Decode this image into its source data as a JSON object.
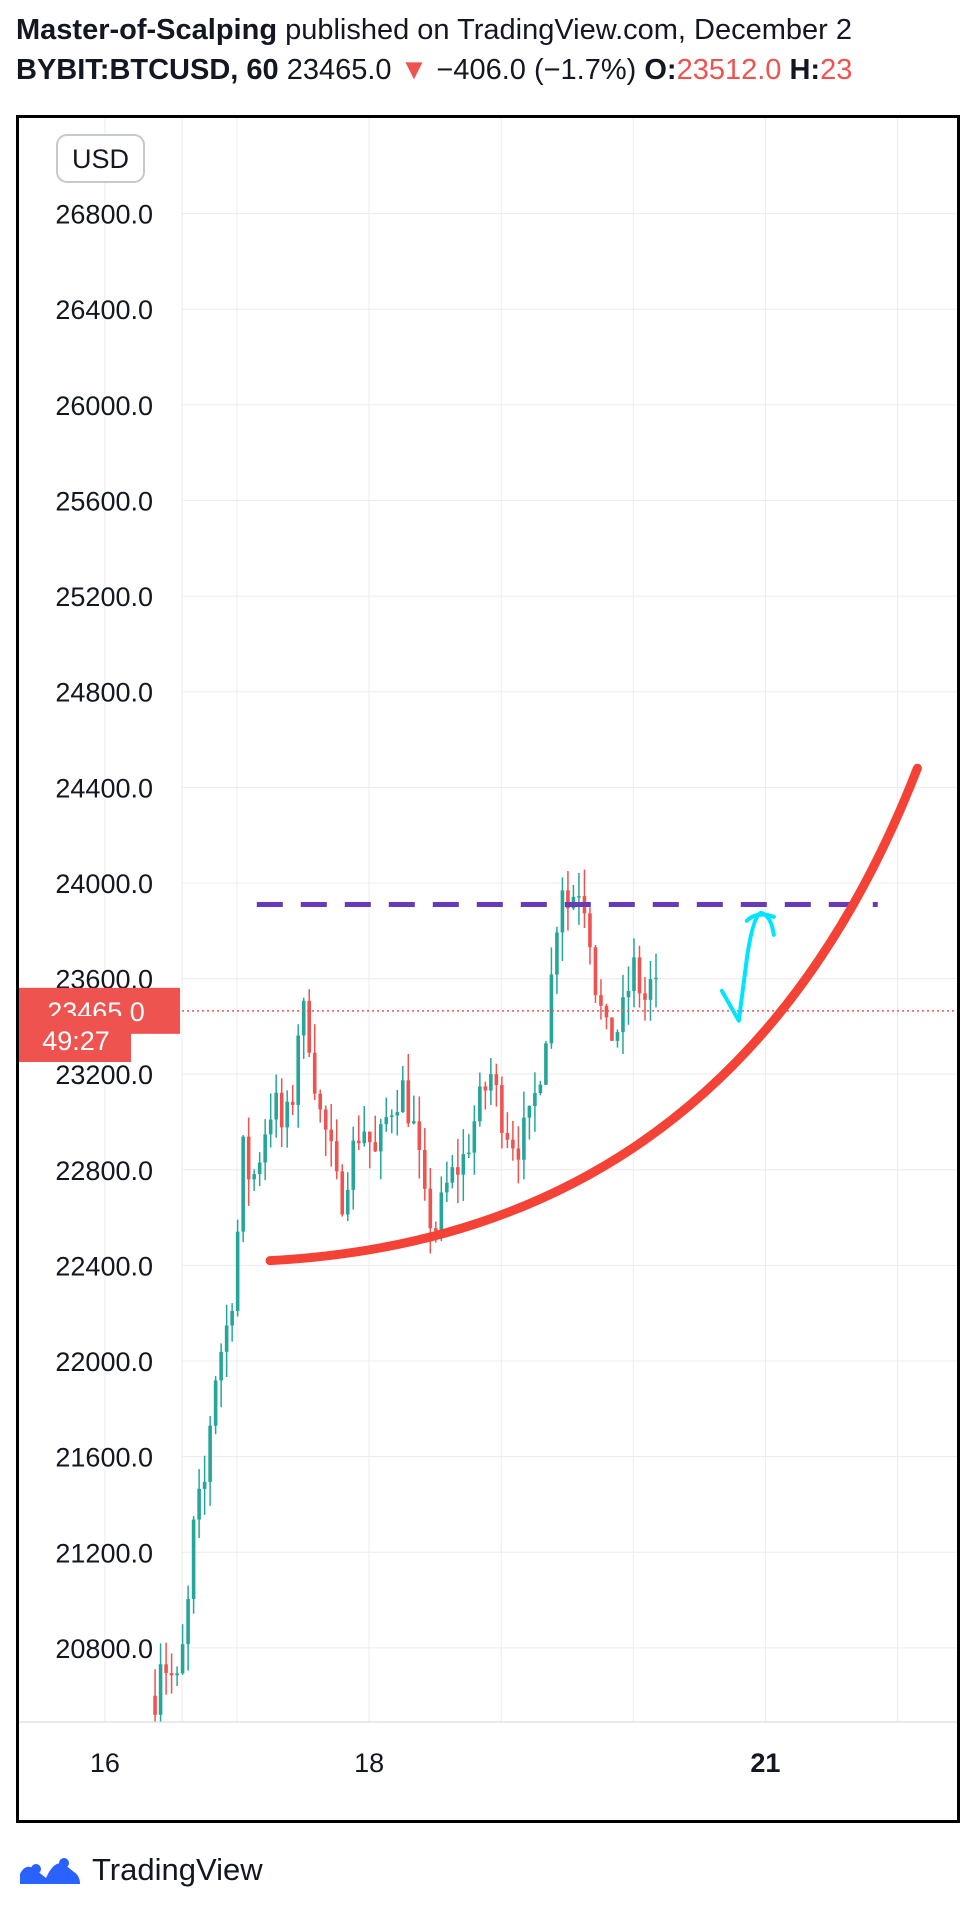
{
  "header": {
    "author": "Master-of-Scalping",
    "published_text": " published on TradingView.com, December 2",
    "symbol": "BYBIT:BTCUSD, 60",
    "last_price": "23465.0",
    "change": "−406.0 (−1.7%)",
    "open_label": "O:",
    "open_value": "23512.0",
    "high_label": "H:",
    "high_value": "23"
  },
  "currency_badge": "USD",
  "price_label": "23465.0",
  "countdown_label": "49:27",
  "footer": {
    "brand": "TradingView"
  },
  "colors": {
    "up": "#26a69a",
    "down": "#ef5350",
    "curve": "#f44336",
    "dash": "#673ab7",
    "arrow": "#00e5ff",
    "grid": "#ececf0"
  },
  "chart_data": {
    "type": "candlestick",
    "timeframe": "60",
    "yticks": [
      26800,
      26400,
      26000,
      25600,
      25200,
      24800,
      24400,
      24000,
      23600,
      23200,
      22800,
      22400,
      22000,
      21600,
      21200,
      20800
    ],
    "ytick_labels": [
      "26800.0",
      "26400.0",
      "26000.0",
      "25600.0",
      "25200.0",
      "24800.0",
      "24400.0",
      "24000.0",
      "23600.0",
      "23200.0",
      "22800.0",
      "22400.0",
      "22000.0",
      "21600.0",
      "21200.0",
      "20800.0"
    ],
    "ylim": [
      20490,
      27200
    ],
    "xlim": [
      15.35,
      22.45
    ],
    "xticks": [
      16,
      18,
      21
    ],
    "xtick_labels": [
      "16",
      "18",
      "21"
    ],
    "current_price": 23465.0,
    "keyframes": [
      {
        "t": 16.38,
        "p": 20600
      },
      {
        "t": 16.42,
        "p": 20780
      },
      {
        "t": 16.48,
        "p": 20700
      },
      {
        "t": 16.55,
        "p": 20640
      },
      {
        "t": 16.62,
        "p": 20900
      },
      {
        "t": 16.68,
        "p": 21350
      },
      {
        "t": 16.75,
        "p": 21450
      },
      {
        "t": 16.82,
        "p": 21900
      },
      {
        "t": 16.88,
        "p": 22050
      },
      {
        "t": 16.95,
        "p": 22200
      },
      {
        "t": 17.0,
        "p": 22500
      },
      {
        "t": 17.05,
        "p": 22900
      },
      {
        "t": 17.1,
        "p": 22750
      },
      {
        "t": 17.15,
        "p": 22800
      },
      {
        "t": 17.2,
        "p": 22950
      },
      {
        "t": 17.28,
        "p": 23100
      },
      {
        "t": 17.35,
        "p": 22950
      },
      {
        "t": 17.42,
        "p": 23100
      },
      {
        "t": 17.48,
        "p": 23500
      },
      {
        "t": 17.55,
        "p": 23350
      },
      {
        "t": 17.62,
        "p": 23050
      },
      {
        "t": 17.7,
        "p": 22900
      },
      {
        "t": 17.78,
        "p": 22650
      },
      {
        "t": 17.86,
        "p": 22850
      },
      {
        "t": 17.95,
        "p": 23000
      },
      {
        "t": 18.05,
        "p": 22850
      },
      {
        "t": 18.15,
        "p": 23050
      },
      {
        "t": 18.25,
        "p": 23150
      },
      {
        "t": 18.35,
        "p": 22950
      },
      {
        "t": 18.42,
        "p": 22650
      },
      {
        "t": 18.5,
        "p": 22550
      },
      {
        "t": 18.6,
        "p": 22750
      },
      {
        "t": 18.72,
        "p": 22850
      },
      {
        "t": 18.82,
        "p": 23050
      },
      {
        "t": 18.92,
        "p": 23200
      },
      {
        "t": 19.02,
        "p": 23000
      },
      {
        "t": 19.12,
        "p": 22900
      },
      {
        "t": 19.22,
        "p": 23000
      },
      {
        "t": 19.32,
        "p": 23300
      },
      {
        "t": 19.4,
        "p": 23700
      },
      {
        "t": 19.45,
        "p": 24050
      },
      {
        "t": 19.5,
        "p": 23900
      },
      {
        "t": 19.58,
        "p": 24000
      },
      {
        "t": 19.65,
        "p": 23900
      },
      {
        "t": 19.72,
        "p": 23550
      },
      {
        "t": 19.8,
        "p": 23350
      },
      {
        "t": 19.9,
        "p": 23400
      },
      {
        "t": 20.0,
        "p": 23650
      },
      {
        "t": 20.08,
        "p": 23500
      },
      {
        "t": 20.15,
        "p": 23600
      },
      {
        "t": 20.2,
        "p": 23465
      }
    ],
    "annotations": {
      "dashed_resistance": {
        "price": 23910,
        "t_start": 17.15,
        "t_end": 21.85
      },
      "rising_curve": {
        "from": {
          "t": 17.25,
          "p": 22420
        },
        "to": {
          "t": 22.15,
          "p": 24480
        }
      },
      "arrow_tip": {
        "t": 20.95,
        "p": 23850
      }
    }
  }
}
